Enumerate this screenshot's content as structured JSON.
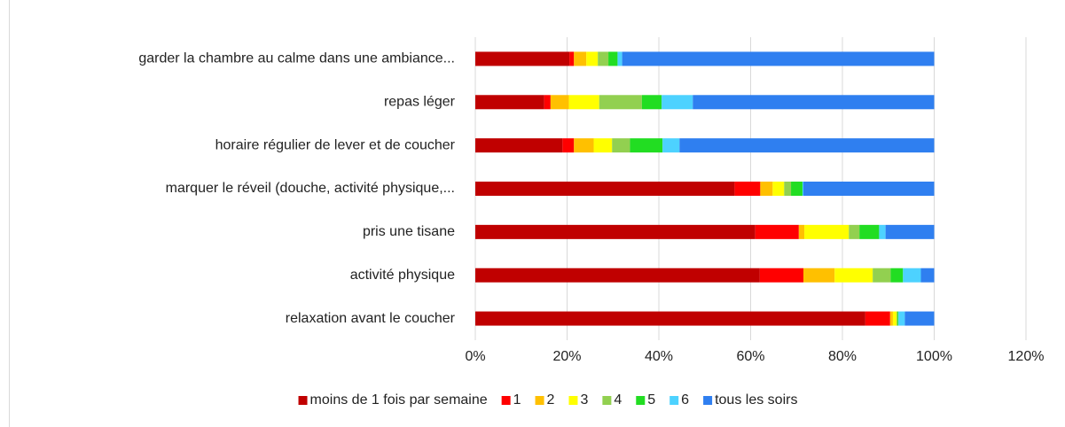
{
  "chart_data": {
    "type": "stacked-bar-horizontal",
    "categories": [
      "garder la chambre au calme dans une ambiance...",
      "repas léger",
      "horaire régulier de lever et de coucher",
      "marquer le réveil (douche, activité physique,...",
      "pris une tisane",
      "activité physique",
      "relaxation avant le coucher"
    ],
    "series": [
      {
        "name": "moins de 1 fois par semaine",
        "color": "#c00000",
        "values": [
          20.5,
          15,
          19,
          56.5,
          61,
          62,
          85
        ]
      },
      {
        "name": "1",
        "color": "#ff0000",
        "values": [
          1,
          1.4,
          2.5,
          5.6,
          9.5,
          9.5,
          5.4
        ]
      },
      {
        "name": "2",
        "color": "#ffc000",
        "values": [
          2.7,
          4,
          4.3,
          2.7,
          1.2,
          6.8,
          0.6
        ]
      },
      {
        "name": "3",
        "color": "#ffff00",
        "values": [
          2.5,
          6.6,
          4,
          2.5,
          9.7,
          8.3,
          0.8
        ]
      },
      {
        "name": "4",
        "color": "#92d050",
        "values": [
          2.3,
          9.3,
          3.9,
          1.5,
          2.3,
          3.9,
          0.2
        ]
      },
      {
        "name": "5",
        "color": "#22dd22",
        "values": [
          2,
          4.3,
          7.1,
          2.5,
          4.3,
          2.7,
          0.2
        ]
      },
      {
        "name": "6",
        "color": "#4dd2ff",
        "values": [
          1,
          6.8,
          3.7,
          0.2,
          1.4,
          3.9,
          1.4
        ]
      },
      {
        "name": "tous les soirs",
        "color": "#2f7ff0",
        "values": [
          68,
          52.6,
          55.5,
          28.5,
          10.6,
          2.9,
          6.4
        ]
      }
    ],
    "xlim": [
      0,
      120
    ],
    "xticks": [
      {
        "value": 0,
        "label": "0%"
      },
      {
        "value": 20,
        "label": "20%"
      },
      {
        "value": 40,
        "label": "40%"
      },
      {
        "value": 60,
        "label": "60%"
      },
      {
        "value": 80,
        "label": "80%"
      },
      {
        "value": 100,
        "label": "100%"
      },
      {
        "value": 120,
        "label": "120%"
      }
    ],
    "grid": true,
    "legend": "bottom"
  }
}
